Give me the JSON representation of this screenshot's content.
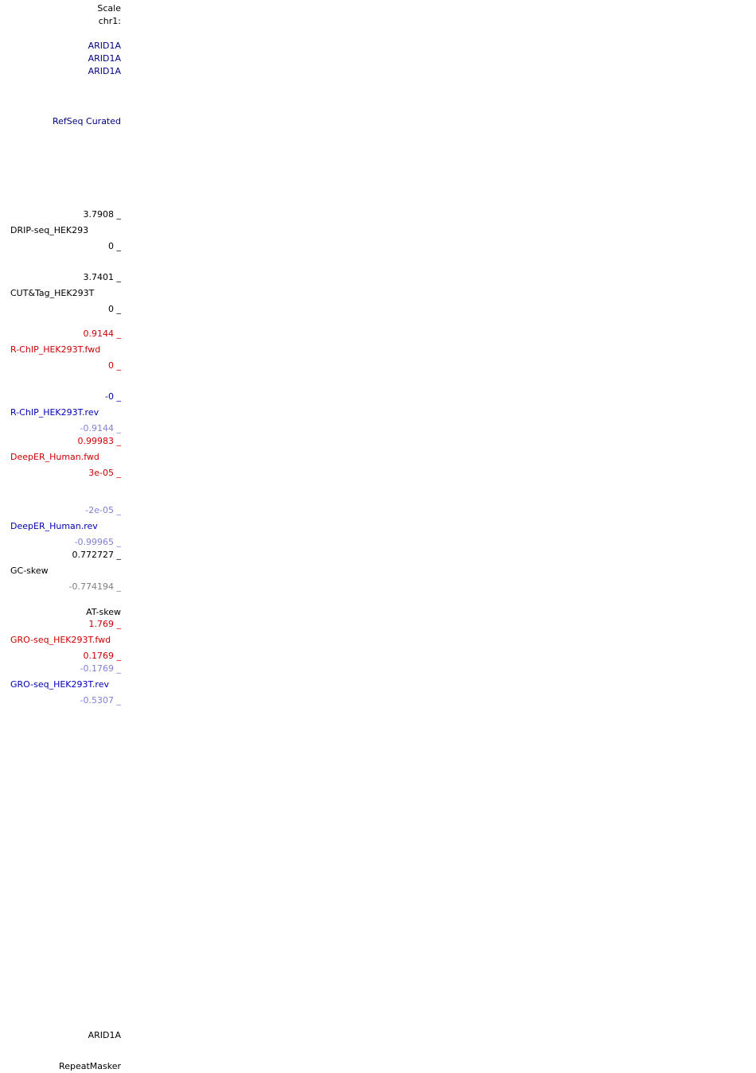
{
  "header": {
    "scale": "Scale",
    "chrom": "chr1:"
  },
  "gene_labels": [
    "ARID1A",
    "ARID1A",
    "ARID1A"
  ],
  "refseq": "RefSeq Curated",
  "tracks": {
    "drip": {
      "max": "3.7908 _",
      "name": "DRIP-seq_HEK293",
      "min": "0 _"
    },
    "cut": {
      "max": "3.7401 _",
      "name": "CUT&Tag_HEK293T",
      "min": "0 _"
    },
    "rchip_fwd": {
      "max": "0.9144 _",
      "name": "R-ChIP_HEK293T.fwd",
      "min": "0 _"
    },
    "rchip_rev": {
      "max": "-0 _",
      "name": "R-ChIP_HEK293T.rev",
      "min": "-0.9144 _"
    },
    "deeper_fwd": {
      "max": "0.99983 _",
      "name": "DeepER_Human.fwd",
      "min": "3e-05 _"
    },
    "deeper_rev": {
      "max": "-2e-05 _",
      "name": "DeepER_Human.rev",
      "min": "-0.99965 _"
    },
    "gc": {
      "max": "0.772727 _",
      "name": "GC-skew",
      "min": "-0.774194 _"
    },
    "at": {
      "name": "AT-skew"
    },
    "gro_fwd": {
      "max": "1.769 _",
      "name": "GRO-seq_HEK293T.fwd",
      "min": "0.1769 _"
    },
    "gro_rev": {
      "max": "-0.1769 _",
      "name": "GRO-seq_HEK293T.rev",
      "min": "-0.5307 _"
    }
  },
  "bottom": {
    "gene": "ARID1A",
    "repeatmasker": "RepeatMasker"
  }
}
